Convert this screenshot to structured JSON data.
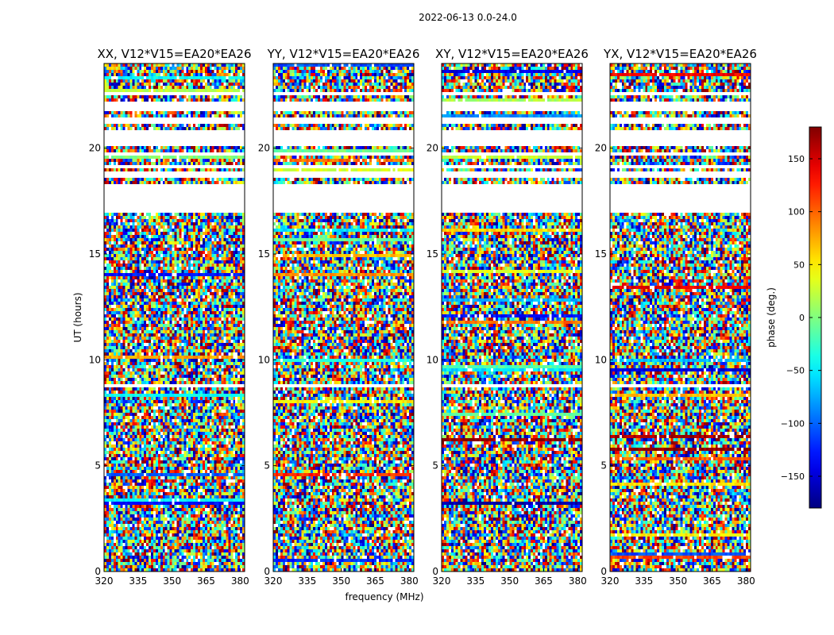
{
  "figure": {
    "title": "2022-06-13 0.0-24.0"
  },
  "chart_data": {
    "type": "heatmap",
    "title": "2022-06-13 0.0-24.0",
    "xlabel": "frequency (MHz)",
    "ylabel": "UT (hours)",
    "xlim": [
      320,
      382
    ],
    "ylim": [
      0,
      24
    ],
    "x_ticks": [
      "320",
      "335",
      "350",
      "365",
      "380"
    ],
    "y_ticks": [
      "0",
      "5",
      "10",
      "15",
      "20"
    ],
    "panels": [
      {
        "title": "XX, V12*V15=EA20*EA26",
        "polarization": "XX"
      },
      {
        "title": "YY, V12*V15=EA20*EA26",
        "polarization": "YY"
      },
      {
        "title": "XY, V12*V15=EA20*EA26",
        "polarization": "XY"
      },
      {
        "title": "YX, V12*V15=EA20*EA26",
        "polarization": "YX"
      }
    ],
    "colorbar": {
      "label": "phase (deg.)",
      "range": [
        -180,
        180
      ],
      "ticks": [
        "150",
        "100",
        "50",
        "0",
        "−50",
        "−100",
        "−150"
      ],
      "colormap": "jet"
    },
    "flagged_hour_ranges": [
      [
        0.55,
        0.6
      ],
      [
        1.5,
        1.55
      ],
      [
        2.5,
        2.55
      ],
      [
        8.75,
        8.85
      ],
      [
        10.0,
        10.05
      ],
      [
        11.2,
        11.25
      ],
      [
        13.3,
        13.35
      ],
      [
        16.0,
        16.05
      ],
      [
        16.45,
        16.5
      ],
      [
        17.0,
        18.3
      ],
      [
        18.6,
        18.85
      ],
      [
        19.1,
        19.2
      ],
      [
        19.6,
        19.8
      ],
      [
        20.1,
        20.9
      ],
      [
        21.2,
        21.4
      ],
      [
        21.8,
        22.2
      ],
      [
        22.5,
        22.6
      ]
    ]
  }
}
